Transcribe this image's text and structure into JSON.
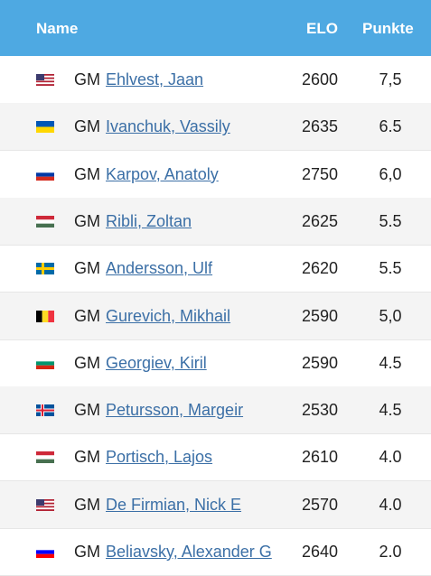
{
  "table": {
    "header": [
      "Name",
      "ELO",
      "Punkte"
    ],
    "rows": [
      {
        "title": "GM",
        "name": "Ehlvest, Jaan",
        "elo": 2600,
        "points": "7,5"
      },
      {
        "title": "GM",
        "name": "Ivanchuk, Vassily",
        "elo": 2635,
        "points": "6.5"
      },
      {
        "title": "GM",
        "name": "Karpov, Anatoly",
        "elo": 2750,
        "points": "6,0"
      },
      {
        "title": "GM",
        "name": "Ribli, Zoltan",
        "elo": 2625,
        "points": "5.5"
      },
      {
        "title": "GM",
        "name": "Andersson, Ulf",
        "elo": 2620,
        "points": "5.5"
      },
      {
        "title": "GM",
        "name": "Gurevich, Mikhail",
        "elo": 2590,
        "points": "5,0"
      },
      {
        "title": "GM",
        "name": "Georgiev, Kiril",
        "elo": 2590,
        "points": "4.5"
      },
      {
        "title": "GM",
        "name": "Petursson, Margeir",
        "elo": 2530,
        "points": "4.5"
      },
      {
        "title": "GM",
        "name": "Portisch, Lajos",
        "elo": 2610,
        "points": "4.0"
      },
      {
        "title": "GM",
        "name": "De Firmian, Nick E",
        "elo": 2570,
        "points": "4.0"
      },
      {
        "title": "GM",
        "name": "Beliavsky, Alexander G",
        "elo": 2640,
        "points": "2.0"
      }
    ]
  }
}
